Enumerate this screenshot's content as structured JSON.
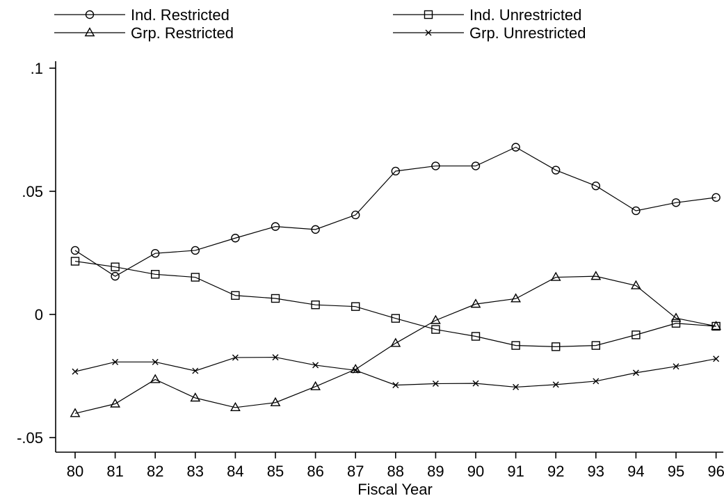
{
  "chart_data": {
    "type": "line",
    "title": "",
    "xlabel": "Fiscal Year",
    "ylabel": "",
    "categories": [
      "80",
      "81",
      "82",
      "83",
      "84",
      "85",
      "86",
      "87",
      "88",
      "89",
      "90",
      "91",
      "92",
      "93",
      "94",
      "95",
      "96"
    ],
    "ylim": [
      -0.05,
      0.1
    ],
    "yticks": [
      {
        "value": 0.1,
        "label": ".1"
      },
      {
        "value": 0.05,
        "label": ".05"
      },
      {
        "value": 0,
        "label": "0"
      },
      {
        "value": -0.05,
        "label": "-.05"
      }
    ],
    "grid": false,
    "legend_position": "top",
    "series": [
      {
        "name": "Ind. Restricted",
        "marker": "circle",
        "values": [
          0.026,
          0.0155,
          0.0248,
          0.026,
          0.031,
          0.0357,
          0.0345,
          0.0404,
          0.0582,
          0.0603,
          0.0603,
          0.0679,
          0.0586,
          0.0522,
          0.0421,
          0.0454,
          0.0475
        ]
      },
      {
        "name": "Ind. Unrestricted",
        "marker": "square",
        "values": [
          0.0216,
          0.0193,
          0.0163,
          0.0151,
          0.0077,
          0.0065,
          0.0039,
          0.0032,
          -0.0016,
          -0.0061,
          -0.0089,
          -0.0126,
          -0.0131,
          -0.0126,
          -0.0083,
          -0.0036,
          -0.0048
        ]
      },
      {
        "name": "Grp. Restricted",
        "marker": "triangle",
        "values": [
          -0.0402,
          -0.0363,
          -0.0264,
          -0.0339,
          -0.0378,
          -0.0358,
          -0.0293,
          -0.0223,
          -0.0117,
          -0.0024,
          0.0042,
          0.0064,
          0.0151,
          0.0155,
          0.0117,
          -0.0015,
          -0.0048
        ]
      },
      {
        "name": "Grp. Unrestricted",
        "marker": "x",
        "values": [
          -0.0232,
          -0.0193,
          -0.0193,
          -0.0229,
          -0.0175,
          -0.0174,
          -0.0206,
          -0.0227,
          -0.0287,
          -0.0281,
          -0.028,
          -0.0295,
          -0.0285,
          -0.0271,
          -0.0237,
          -0.0211,
          -0.018
        ]
      }
    ]
  }
}
